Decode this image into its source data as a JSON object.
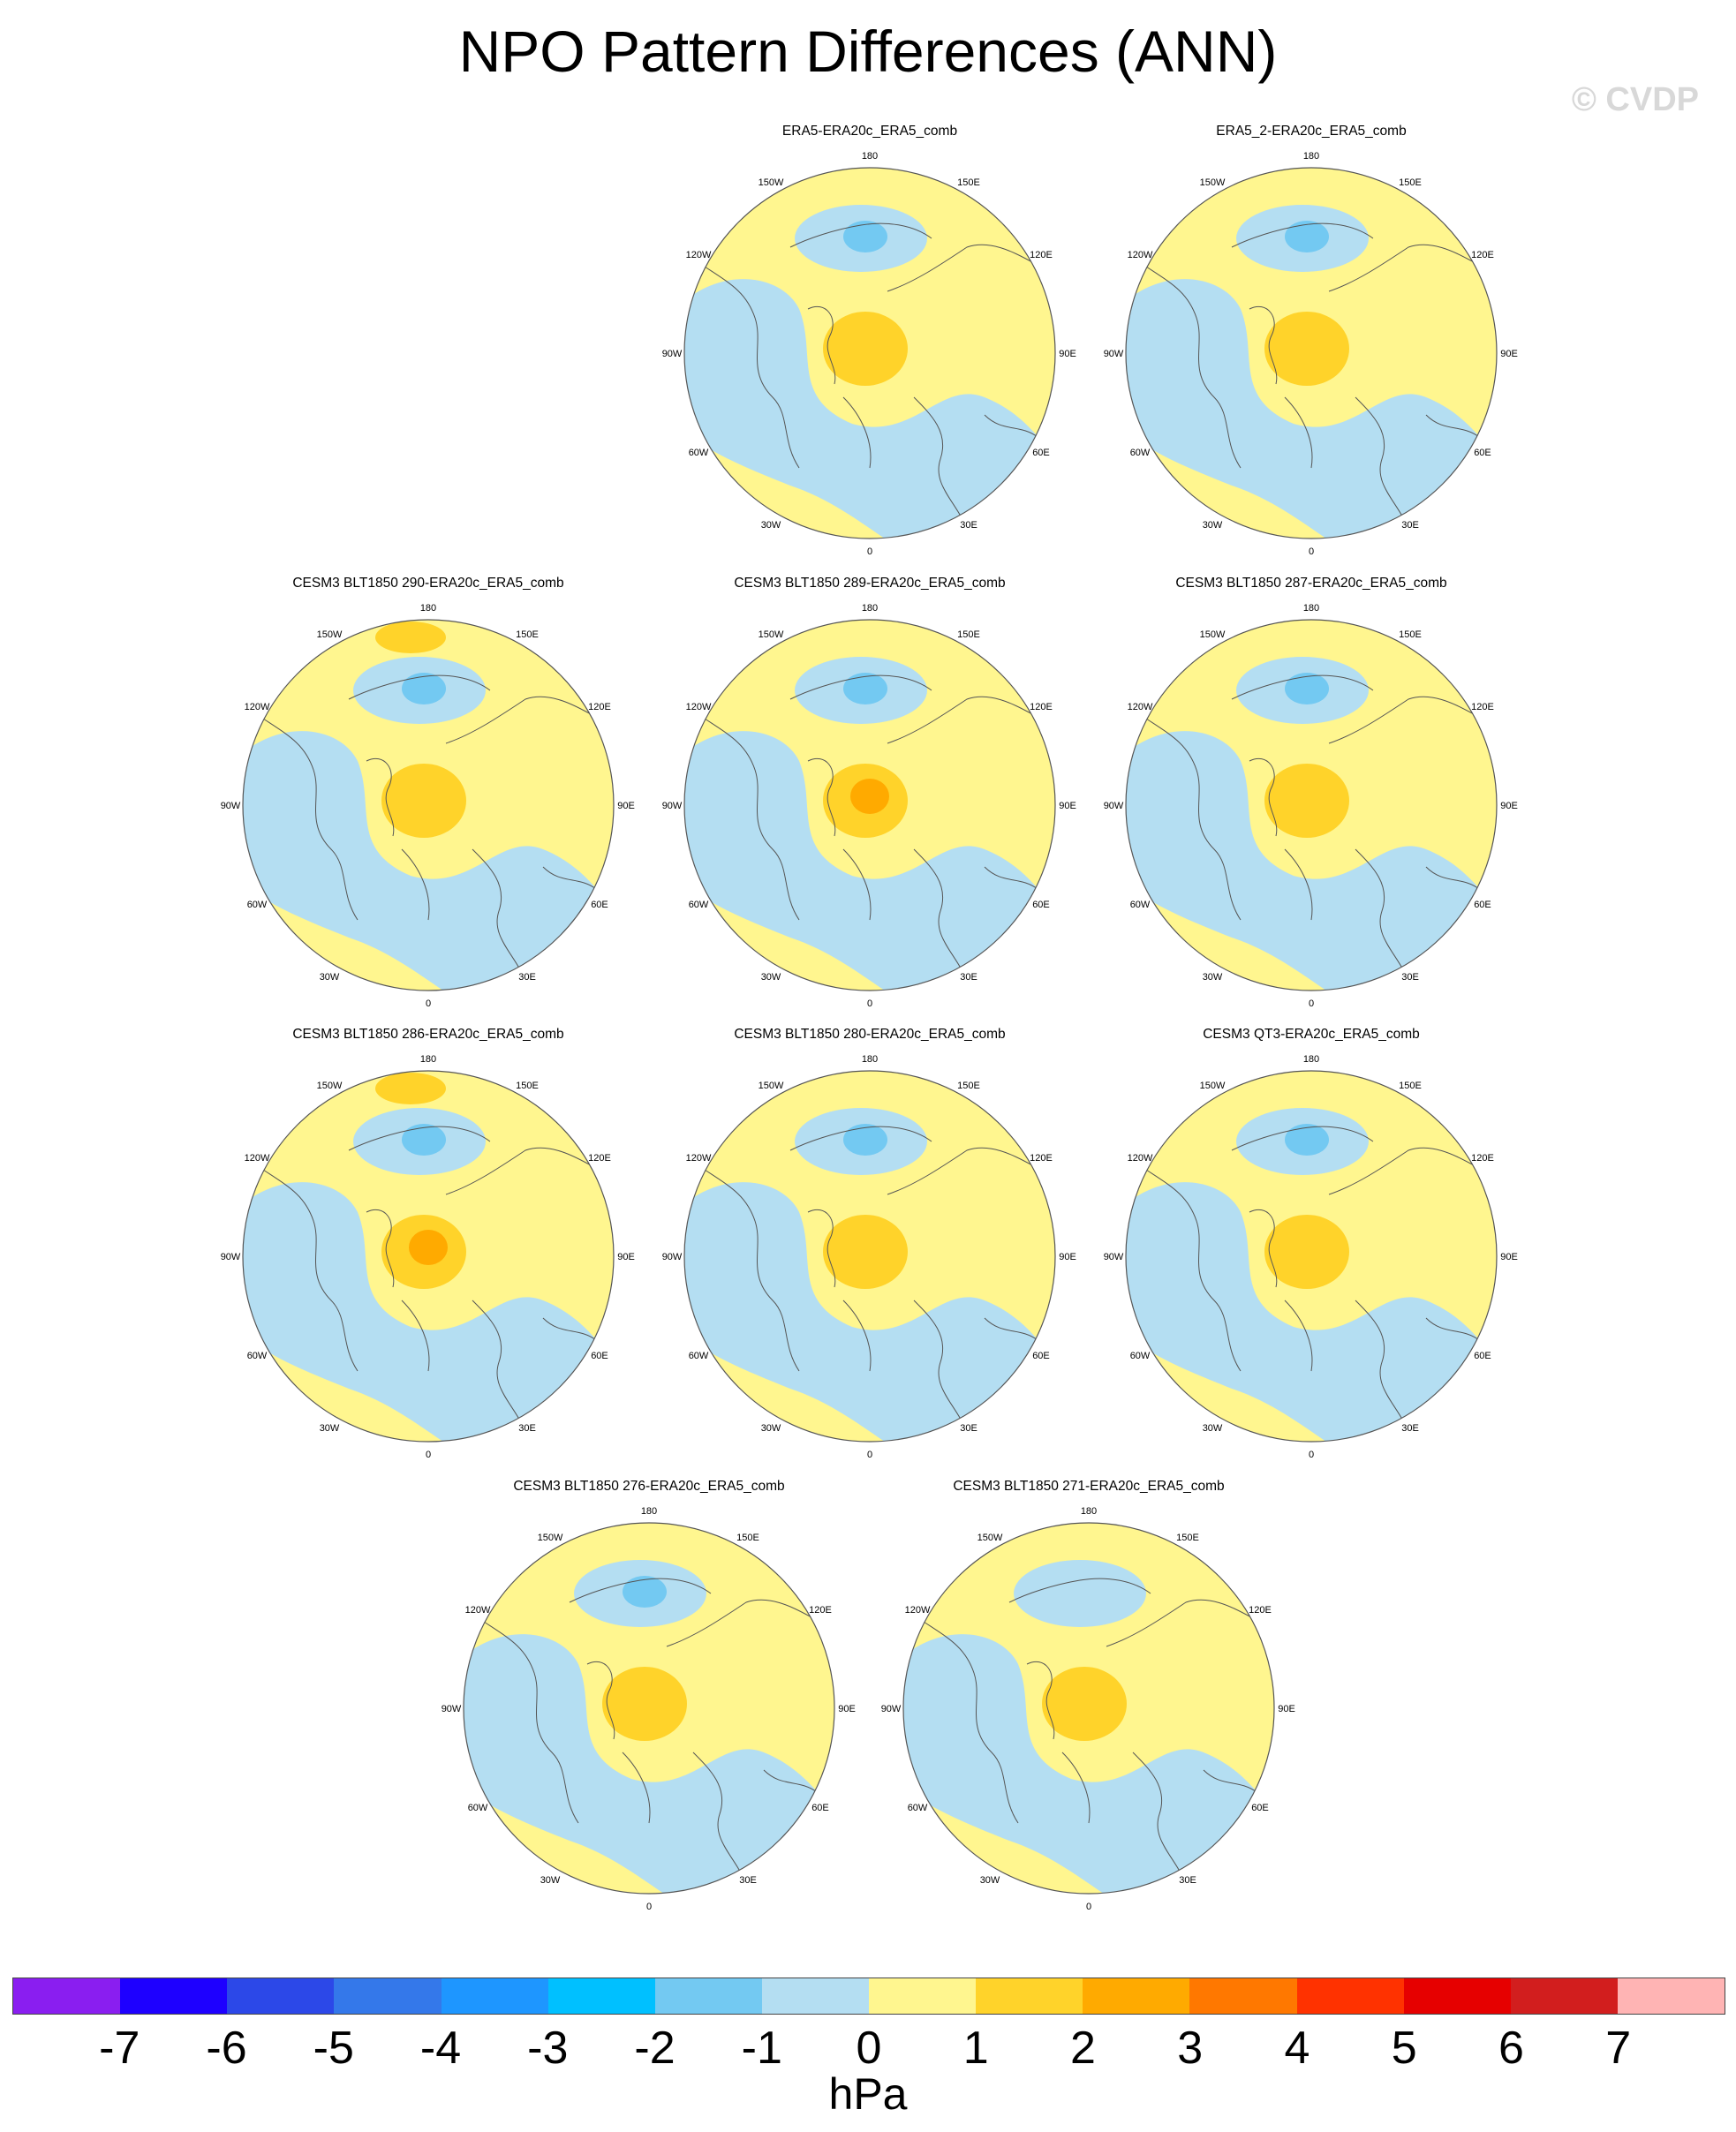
{
  "title": "NPO Pattern Differences (ANN)",
  "copyright": "© CVDP",
  "longitude_labels": [
    "180",
    "150E",
    "120E",
    "90E",
    "60E",
    "30E",
    "0",
    "30W",
    "60W",
    "90W",
    "120W",
    "150W"
  ],
  "colors": {
    "neutral": "#FFF68F",
    "neg1": "#B4DEF2",
    "neg2": "#73C9F2",
    "pos1": "#FFD32A",
    "pos2": "#FFAA00",
    "coast": "#555555",
    "ring": "#555555"
  },
  "panels": [
    {
      "title": "ERA5-ERA20c_ERA5_comb",
      "high_max": 2,
      "low_min": -2,
      "pacific_high": false,
      "row": 0,
      "col": 1
    },
    {
      "title": "ERA5_2-ERA20c_ERA5_comb",
      "high_max": 2,
      "low_min": -2,
      "pacific_high": false,
      "row": 0,
      "col": 2
    },
    {
      "title": "CESM3 BLT1850 290-ERA20c_ERA5_comb",
      "high_max": 2,
      "low_min": -2,
      "pacific_high": true,
      "row": 1,
      "col": 0
    },
    {
      "title": "CESM3 BLT1850 289-ERA20c_ERA5_comb",
      "high_max": 3,
      "low_min": -2,
      "pacific_high": false,
      "row": 1,
      "col": 1
    },
    {
      "title": "CESM3 BLT1850 287-ERA20c_ERA5_comb",
      "high_max": 2,
      "low_min": -2,
      "pacific_high": false,
      "row": 1,
      "col": 2
    },
    {
      "title": "CESM3 BLT1850 286-ERA20c_ERA5_comb",
      "high_max": 3,
      "low_min": -2,
      "pacific_high": true,
      "row": 2,
      "col": 0
    },
    {
      "title": "CESM3 BLT1850 280-ERA20c_ERA5_comb",
      "high_max": 2,
      "low_min": -2,
      "pacific_high": false,
      "row": 2,
      "col": 1
    },
    {
      "title": "CESM3 QT3-ERA20c_ERA5_comb",
      "high_max": 2,
      "low_min": -2,
      "pacific_high": false,
      "row": 2,
      "col": 2
    },
    {
      "title": "CESM3 BLT1850 276-ERA20c_ERA5_comb",
      "high_max": 2,
      "low_min": -2,
      "pacific_high": false,
      "row": 3,
      "col": 0
    },
    {
      "title": "CESM3 BLT1850 271-ERA20c_ERA5_comb",
      "high_max": 1,
      "low_min": -1,
      "pacific_high": false,
      "row": 3,
      "col": 1
    }
  ],
  "colorbar": {
    "colors": [
      "#8A1EF0",
      "#1E00FF",
      "#2C48E8",
      "#3478EA",
      "#1E96FF",
      "#00C0FF",
      "#73C9F2",
      "#B4DEF2",
      "#FFF68F",
      "#FFD32A",
      "#FFAA00",
      "#FF7800",
      "#FF3200",
      "#E60000",
      "#D21E1E",
      "#FFB4B4"
    ],
    "labels": [
      "-7",
      "-6",
      "-5",
      "-4",
      "-3",
      "-2",
      "-1",
      "0",
      "1",
      "2",
      "3",
      "4",
      "5",
      "6",
      "7"
    ],
    "units": "hPa"
  }
}
